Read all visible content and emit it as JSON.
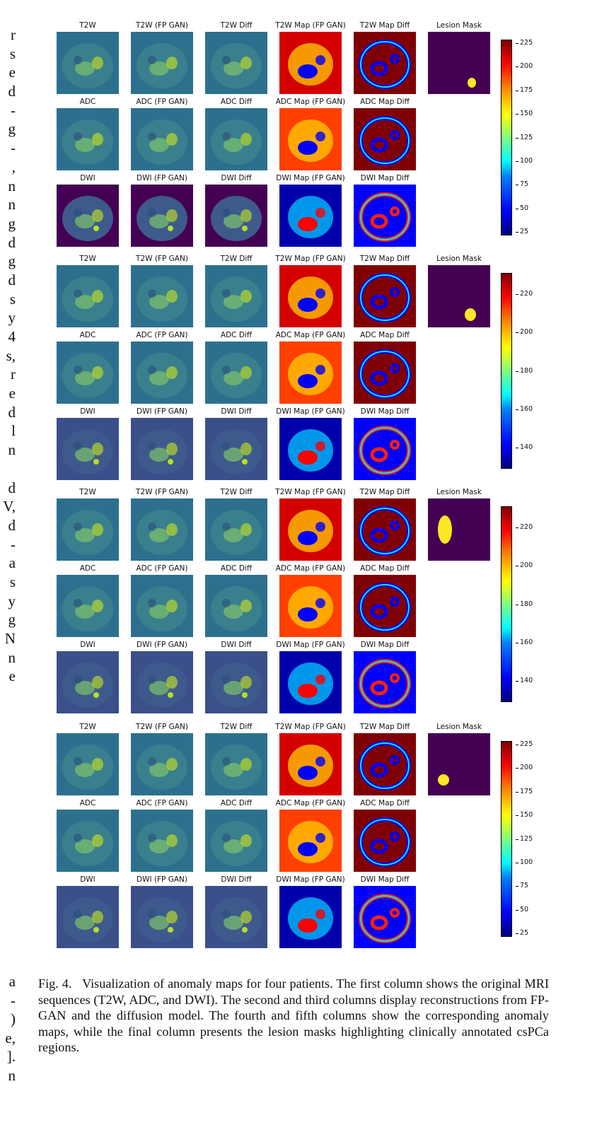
{
  "left_column_text": [
    "r",
    "s",
    "e",
    "d",
    "-",
    "g",
    "-",
    ",",
    "n",
    "n",
    "g",
    "d",
    "g",
    "d",
    "s",
    "y",
    "4",
    "s,",
    "r",
    "e",
    "d",
    "l",
    "n",
    "",
    "d",
    "V,",
    "d",
    "-",
    "a",
    "s",
    "y",
    "g",
    "N",
    "n",
    "e"
  ],
  "bottom_left_text": [
    "a",
    "-",
    ")",
    "e,",
    "].",
    "n"
  ],
  "column_titles": {
    "group_rows": [
      [
        "T2W",
        "T2W (FP GAN)",
        "T2W Diff",
        "T2W Map (FP GAN)",
        "T2W Map Diff",
        "Lesion Mask"
      ],
      [
        "ADC",
        "ADC (FP GAN)",
        "ADC Diff",
        "ADC Map (FP GAN)",
        "ADC Map Diff"
      ],
      [
        "DWI",
        "DWI (FP GAN)",
        "DWI Diff",
        "DWI Map (FP GAN)",
        "DWI Map Diff"
      ]
    ]
  },
  "colorbars": [
    {
      "ticks": [
        "225",
        "200",
        "175",
        "150",
        "125",
        "100",
        "75",
        "50",
        "25"
      ]
    },
    {
      "ticks": [
        "220",
        "200",
        "180",
        "160",
        "140"
      ]
    },
    {
      "ticks": [
        "220",
        "200",
        "180",
        "160",
        "140"
      ]
    },
    {
      "ticks": [
        "225",
        "200",
        "175",
        "150",
        "125",
        "100",
        "75",
        "50",
        "25"
      ]
    }
  ],
  "colors": {
    "viridis_bg": "#2d708e",
    "viridis_dark": "#440154",
    "viridis_yellow": "#fde725",
    "jet_red": "#d40000",
    "jet_darkred": "#7f0000",
    "jet_blue": "#0000ff",
    "jet_cyan": "#00e5ff"
  },
  "caption": {
    "label": "Fig. 4.",
    "text": "Visualization of anomaly maps for four patients. The first column shows the original MRI sequences (T2W, ADC, and DWI). The second and third columns display reconstructions from FP-GAN and the diffusion model. The fourth and fifth columns show the corresponding anomaly maps, while the final column presents the lesion masks highlighting clinically annotated csPCa regions."
  }
}
